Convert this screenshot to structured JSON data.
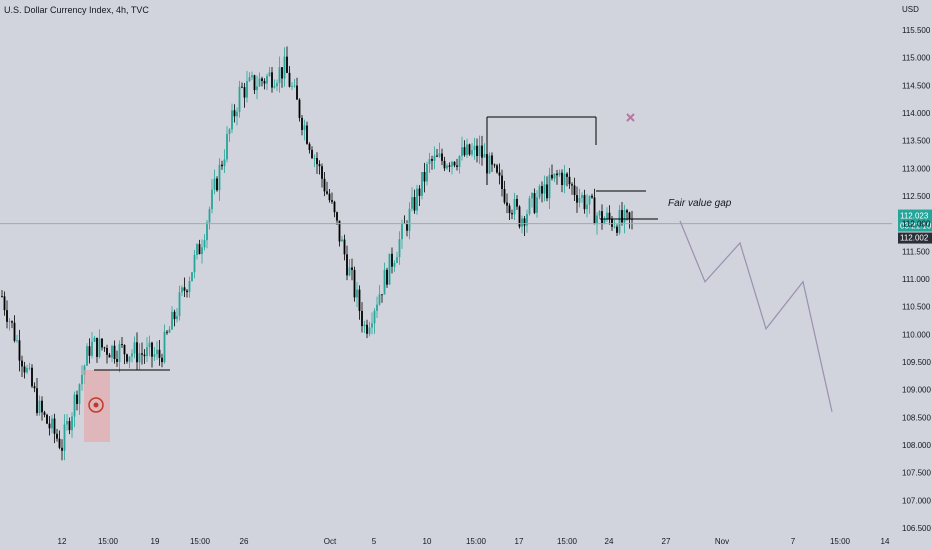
{
  "header": {
    "title": "U.S. Dollar Currency Index, 4h, TVC"
  },
  "chart_data": {
    "type": "candlestick",
    "title": "U.S. Dollar Currency Index, 4h, TVC",
    "currency": "USD",
    "y_range": [
      106.5,
      116.0
    ],
    "y_ticks": [
      "115.500",
      "115.000",
      "114.500",
      "114.000",
      "113.500",
      "113.000",
      "112.500",
      "112.000",
      "111.500",
      "111.000",
      "110.500",
      "110.000",
      "109.500",
      "109.000",
      "108.500",
      "108.000",
      "107.500",
      "107.000",
      "106.500"
    ],
    "x_ticks": [
      "12",
      "15:00",
      "19",
      "15:00",
      "26",
      "Oct",
      "5",
      "10",
      "15:00",
      "17",
      "15:00",
      "24",
      "27",
      "Nov",
      "7",
      "15:00",
      "14"
    ],
    "last_price": "112.023",
    "countdown": "03:21:10",
    "price_line": "112.002",
    "annotation": "Fair value gap",
    "colors": {
      "up": "#26a69a",
      "down": "#000000",
      "background": "#d1d4dc",
      "path": "#9c8fb0",
      "cross": "#b07aa1",
      "price_line": "#8fb3ac",
      "zone": "#e8a1a1"
    },
    "anchors": [
      [
        "12",
        108.5
      ],
      [
        "15:00",
        109.7
      ],
      [
        "19",
        109.6
      ],
      [
        "15:00",
        112.2
      ],
      [
        "26",
        114.7
      ],
      [
        "Oct",
        112.4
      ],
      [
        "5",
        110.2
      ],
      [
        "10",
        113.0
      ],
      [
        "15:00",
        113.3
      ],
      [
        "17",
        112.1
      ],
      [
        "15:00",
        112.8
      ],
      [
        "24",
        112.0
      ]
    ],
    "projection": [
      112.05,
      110.95,
      111.65,
      110.1,
      110.95,
      108.6
    ]
  }
}
